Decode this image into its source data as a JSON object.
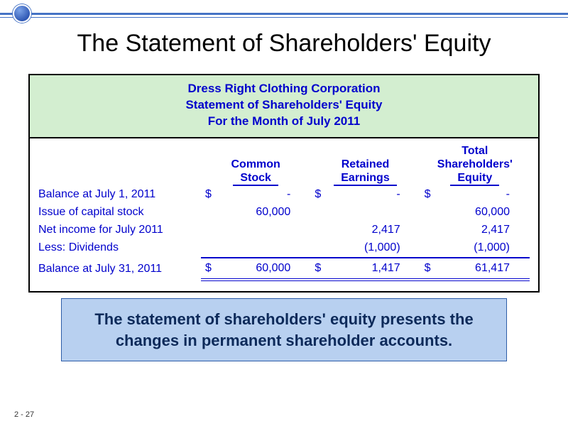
{
  "slide": {
    "title": "The Statement of Shareholders' Equity",
    "page_number": "2 - 27",
    "accent_color": "#4472c4",
    "callout_bg": "#b8d0f0",
    "callout_border": "#2e5da8",
    "table_header_bg": "#d3eed0",
    "text_blue": "#0000cc"
  },
  "statement": {
    "company": "Dress Right Clothing Corporation",
    "title": "Statement of Shareholders' Equity",
    "period": "For the Month of July 2011",
    "columns": {
      "c1_label": "Common",
      "c1_sub": "Stock",
      "c2_label": "Retained",
      "c2_sub": "Earnings",
      "c3_label_top": "Total",
      "c3_label": "Shareholders'",
      "c3_sub": "Equity"
    },
    "currency": "$",
    "rows": {
      "r1": {
        "label": "Balance at July 1, 2011",
        "c1": "-",
        "c2": "-",
        "c3": "-",
        "sym": true
      },
      "r2": {
        "label": "Issue of capital stock",
        "c1": "60,000",
        "c2": "",
        "c3": "60,000"
      },
      "r3": {
        "label": "Net income for July 2011",
        "c1": "",
        "c2": "2,417",
        "c3": "2,417"
      },
      "r4": {
        "label": "Less: Dividends",
        "c1": "",
        "c2": "(1,000)",
        "c3": "(1,000)"
      },
      "r5": {
        "label": "Balance at July 31, 2011",
        "c1": "60,000",
        "c2": "1,417",
        "c3": "61,417",
        "sym": true
      }
    }
  },
  "callout": {
    "text": "The statement of shareholders' equity presents the changes in permanent shareholder accounts."
  }
}
